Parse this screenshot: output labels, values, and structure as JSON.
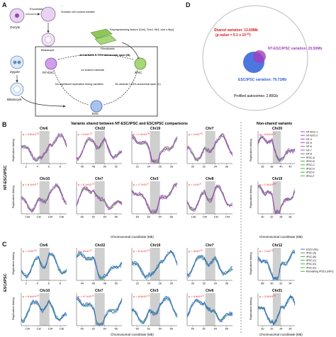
{
  "panels": {
    "A": "A",
    "B": "B",
    "C": "C",
    "D": "D"
  },
  "panelA": {
    "oocyte": "Oocyte",
    "enucleation": "Enucleation",
    "sperm_marker": "♂",
    "somatic_transfer": "Somatic cell nuclear transfer",
    "blastocyst_top": "Blastocyst",
    "reprogramming": "Reprogramming factors (Oct4, Sox2, Klf4, and c-Myc)",
    "fibroblasts": "Fibroblasts",
    "zygote": "Zygote",
    "blastocyst_left": "Blastocyst",
    "nt_esc": "NT-ESC",
    "ipsc": "iPSC",
    "esc": "ESC",
    "top_variants": "24 variants 0.71% autosomal span (B)",
    "shared": "14 shared variants",
    "no_sig": "No significant replication timing variation",
    "right_variants": "26 variants 2.63% autosomal span (C)"
  },
  "panelD": {
    "shared_label": "Shared variation: 13.69Mb",
    "pvalue": "(p-value = 5.1 x 10",
    "pvalue_exp": "-43",
    "pvalue_close": ")",
    "nt_label": "NT-ESC/iPSC variation: 20.50Mb",
    "esc_label": "ESC/iPSC variation: 79.71Mb",
    "profiled": "Profiled autosomes: 2.80Gb"
  },
  "panelB": {
    "title": "Variants shared between NT-ESC/iPSC and ESC/iPSC comparisons",
    "nonshared": "Non-shared variants",
    "row_label": "NT-ESC/iPSC",
    "ylabel": "Replication timing",
    "xlabel": "Chromosomal coordinate (Mb)",
    "plots_top": [
      {
        "chr": "Chr6",
        "p": "p = 4.5x10",
        "e": "-32",
        "ticks": [
          "2",
          "4",
          "6",
          "8"
        ]
      },
      {
        "chr": "Chr22",
        "p": "p = 1x10",
        "e": "-10",
        "ticks": [
          "46",
          "48",
          "50",
          "52"
        ]
      },
      {
        "chr": "Chr19",
        "p": "p = 1.4x10",
        "e": "-20",
        "ticks": [
          "22",
          "24",
          "26",
          "28"
        ]
      },
      {
        "chr": "Chr7",
        "p": "p = 1x10",
        "e": "-40",
        "ticks": [
          "30",
          "32",
          "34",
          "36"
        ]
      }
    ],
    "plots_bottom": [
      {
        "chr": "Chr10",
        "p": "p = 6.1x10",
        "e": "-8",
        "ticks": [
          "130",
          "132",
          "134",
          "136"
        ]
      },
      {
        "chr": "Chr7",
        "p": "p = 5.1x10",
        "e": "-13",
        "ticks": [
          "60",
          "62",
          "64",
          "66"
        ]
      },
      {
        "chr": "Chr3",
        "p": "p = 1.7x10",
        "e": "-9",
        "ticks": [
          "60",
          "62",
          "64",
          "66"
        ]
      },
      {
        "chr": "Chr8",
        "p": "p = 1x10",
        "e": "-6",
        "ticks": [
          "138",
          "140",
          "142",
          "144"
        ]
      }
    ],
    "nonshared_plots": [
      {
        "chr": "Chr20",
        "p": "p = 9.4x10",
        "e": "-12",
        "ticks": [
          "36",
          "38",
          "40",
          "42"
        ]
      },
      {
        "chr": "Chr19",
        "p": "p = 1.5x10",
        "e": "-29",
        "ticks": [
          "30",
          "32",
          "34",
          "36"
        ]
      }
    ],
    "legend": [
      "NT-ESC-1",
      "NT-ESC-2",
      "NT-4",
      "NT-5",
      "NT-6",
      "NT-7",
      "NT-8",
      "iPSC-A",
      "iPSC-B",
      "iPSC-C",
      "iPSC-D",
      "iPSC-E",
      "iPSC-F"
    ]
  },
  "panelC": {
    "row_label": "ESC/iPSC",
    "ylabel": "Replication timing",
    "xlabel": "Chromosomal coordinate (Mb)",
    "plots_top": [
      {
        "chr": "Chr6",
        "p": "p = 1x10",
        "e": "-20",
        "ticks": [
          "2",
          "4",
          "6",
          "8"
        ]
      },
      {
        "chr": "Chr22",
        "p": "p = 2x10",
        "e": "-21",
        "ticks": [
          "44",
          "46",
          "48",
          "50"
        ]
      },
      {
        "chr": "Chr19",
        "p": "p = 6.1x10",
        "e": "-19",
        "ticks": [
          "22",
          "24",
          "26",
          "28"
        ]
      },
      {
        "chr": "Chr7",
        "p": "p = 3x10",
        "e": "-15",
        "ticks": [
          "30",
          "32",
          "34",
          "36"
        ]
      }
    ],
    "plots_bottom": [
      {
        "chr": "Chr10",
        "p": "p = 6.6x10",
        "e": "-18",
        "ticks": [
          "130",
          "132",
          "134",
          "136"
        ]
      },
      {
        "chr": "Chr7",
        "p": "p = 4.7x10",
        "e": "-10",
        "ticks": [
          "60",
          "62",
          "64",
          "66"
        ]
      },
      {
        "chr": "Chr3",
        "p": "p = 6.6x10",
        "e": "-10",
        "ticks": [
          "60",
          "62",
          "64",
          "66"
        ]
      },
      {
        "chr": "Chr6",
        "p": "p = 4.6x10",
        "e": "-9",
        "ticks": [
          "60",
          "62",
          "64",
          "66"
        ]
      }
    ],
    "nonshared_plots": [
      {
        "chr": "Chr12",
        "p": "p = 7x10",
        "e": "-15",
        "ticks": [
          "88",
          "90",
          "92",
          "94"
        ]
      },
      {
        "chr": "Chr21",
        "p": "p = 2.9x10",
        "e": "-15",
        "ticks": [
          "30",
          "32",
          "34",
          "36"
        ]
      }
    ],
    "legend": [
      "ESCs (hE)",
      "iPSC (A)",
      "iPSC (B)",
      "iPSC (C)",
      "iPSC (D)",
      "iPSC (E)",
      "Remaining iPSCs (hiPs)"
    ]
  },
  "colors": {
    "purple": "#a23cc0",
    "green": "#3fa535",
    "blue": "#2b5fd9",
    "grey": "#cfcfcf",
    "red": "#e01818",
    "nt": "#a23cc0",
    "esc": "#2b5fd9"
  }
}
